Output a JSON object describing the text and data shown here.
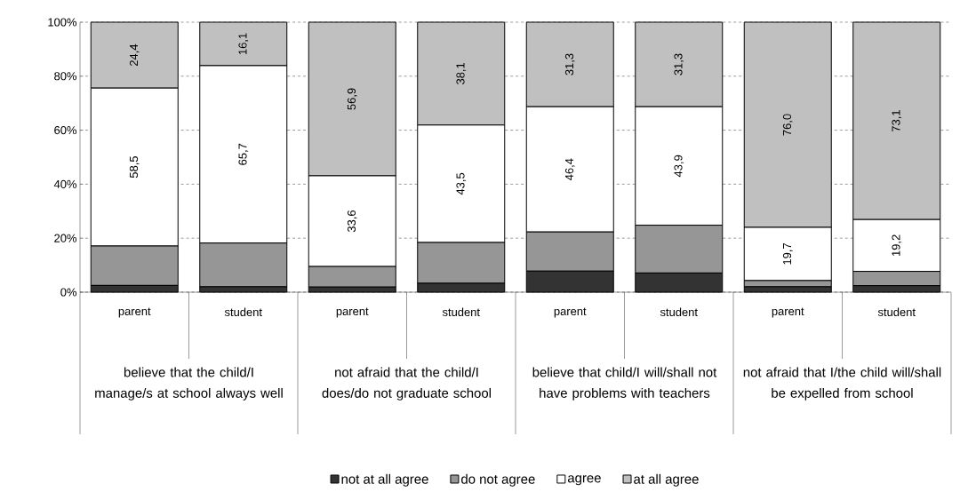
{
  "chart_data": {
    "type": "bar",
    "stacked": true,
    "categories": [
      "parent",
      "student",
      "parent",
      "student",
      "parent",
      "student",
      "parent",
      "student"
    ],
    "annotations": [
      "believe that the child/I manage/s at school always well",
      "not afraid that the child/I does/do not graduate school",
      "believe that child/I will/shall not have problems with teachers",
      "not afraid that I/the child will/shall be expelled from school"
    ],
    "series": [
      {
        "name": "not at all agree",
        "color": "#333333",
        "values": [
          2.5,
          2.0,
          1.9,
          3.3,
          7.8,
          7.1,
          2.0,
          2.4
        ]
      },
      {
        "name": "do not agree",
        "color": "#969696",
        "values": [
          14.6,
          16.2,
          7.6,
          15.1,
          14.5,
          17.7,
          2.3,
          5.3
        ]
      },
      {
        "name": "agree",
        "color": "#ffffff",
        "values": [
          58.5,
          65.7,
          33.6,
          43.5,
          46.4,
          43.9,
          19.7,
          19.2
        ],
        "value_labels": [
          "58,5",
          "65,7",
          "33,6",
          "43,5",
          "46,4",
          "43,9",
          "19,7",
          "19,2"
        ]
      },
      {
        "name": "at all agree",
        "color": "#c0c0c0",
        "values": [
          24.4,
          16.1,
          56.9,
          38.1,
          31.3,
          31.3,
          76.0,
          73.1
        ],
        "value_labels": [
          "24,4",
          "16,1",
          "56,9",
          "38,1",
          "31,3",
          "31,3",
          "76,0",
          "73,1"
        ]
      }
    ],
    "ylim": [
      0,
      100
    ],
    "yticks": [
      {
        "value": 0,
        "label": "0%"
      },
      {
        "value": 20,
        "label": "20%"
      },
      {
        "value": 40,
        "label": "40%"
      },
      {
        "value": 60,
        "label": "60%"
      },
      {
        "value": 80,
        "label": "80%"
      },
      {
        "value": 100,
        "label": "100%"
      }
    ],
    "grid": "y",
    "legend": "bottom"
  }
}
